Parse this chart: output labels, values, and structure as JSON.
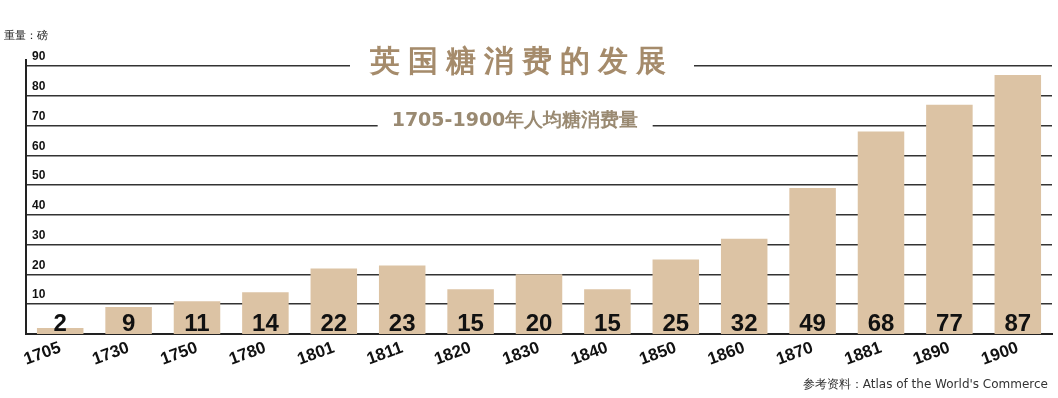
{
  "chart_data": {
    "type": "bar",
    "title": "英国糖消费的发展",
    "subtitle": "1705-1900年人均糖消费量",
    "ylabel": "重量：磅",
    "categories": [
      "1705",
      "1730",
      "1750",
      "1780",
      "1801",
      "1811",
      "1820",
      "1830",
      "1840",
      "1850",
      "1860",
      "1870",
      "1881",
      "1890",
      "1900"
    ],
    "values": [
      2,
      9,
      11,
      14,
      22,
      23,
      15,
      20,
      15,
      25,
      32,
      49,
      68,
      77,
      87
    ],
    "color": "#dcc3a4",
    "ylim": [
      0,
      92
    ],
    "yticks": [
      10,
      20,
      30,
      40,
      50,
      60,
      70,
      80,
      90
    ],
    "grid": "y",
    "legend": false,
    "data_labels": true,
    "annotations": [
      "参考资料：Atlas of the World's Commerce"
    ]
  }
}
